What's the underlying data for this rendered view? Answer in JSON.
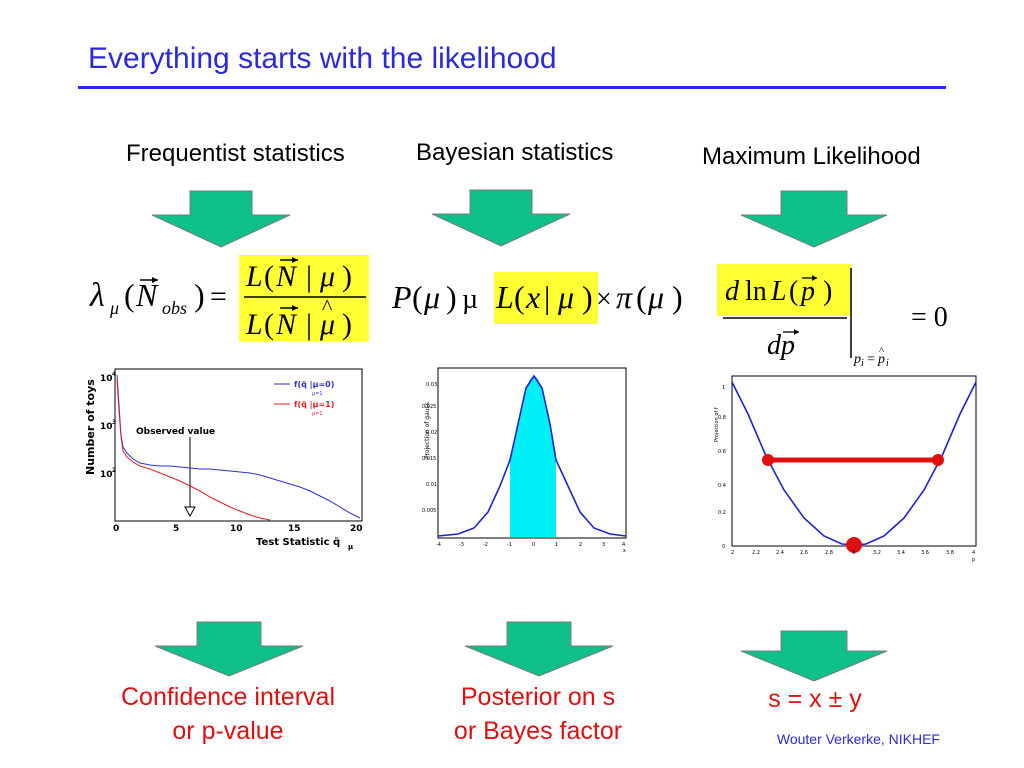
{
  "title": "Everything starts with the likelihood",
  "columns": {
    "frequentist": {
      "heading": "Frequentist statistics",
      "caption_line1": "Confidence interval",
      "caption_line2": "or p-value"
    },
    "bayesian": {
      "heading": "Bayesian statistics",
      "caption_line1": "Posterior on s",
      "caption_line2": "or Bayes factor"
    },
    "ml": {
      "heading": "Maximum Likelihood",
      "caption": "s = x ± y"
    }
  },
  "footer": "Wouter Verkerke, NIKHEF",
  "colors": {
    "title": "#2a2ad8",
    "arrow": "#10c08a",
    "highlight": "#ffff33",
    "caption": "#e01010",
    "cyan": "#00f0f8"
  },
  "plots": {
    "frequentist": {
      "ylabel": "Number of toys",
      "xlabel": "Test Statistic q̃",
      "xlabel_sub": "μ",
      "annotation": "Observed value",
      "legend": [
        "f(q̃ |μ=0)",
        "f(q̃ |μ=1)"
      ],
      "legend_sub": "μ=1",
      "xticks": [
        "0",
        "5",
        "10",
        "15",
        "20"
      ],
      "yticks": [
        "10",
        "10",
        "10"
      ],
      "yexp": [
        "4",
        "3",
        "2"
      ]
    },
    "bayesian": {
      "ylabel": "Projection of gauss",
      "xlabel": "x",
      "xticks": [
        "-4",
        "-3",
        "-2",
        "-1",
        "0",
        "1",
        "2",
        "3",
        "4"
      ],
      "yticks": [
        "0.005",
        "0.01",
        "0.015",
        "0.02",
        "0.025",
        "0.03"
      ]
    },
    "ml": {
      "ylabel": "Projection of f",
      "xlabel": "p",
      "xticks": [
        "2",
        "2.2",
        "2.4",
        "2.6",
        "2.8",
        "3",
        "3.2",
        "3.4",
        "3.6",
        "3.8",
        "4"
      ],
      "yticks": [
        "0",
        "0.2",
        "0.4",
        "0.6",
        "0.8",
        "1"
      ]
    }
  }
}
